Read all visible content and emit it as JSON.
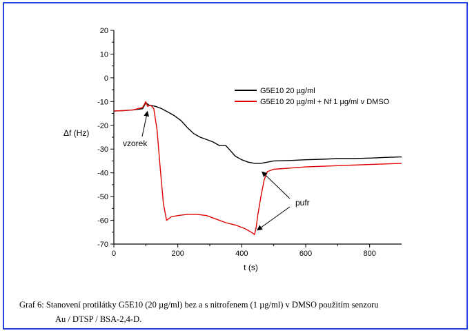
{
  "chart_data": {
    "type": "line",
    "xlabel": "t (s)",
    "ylabel": "Δf (Hz)",
    "xlim": [
      0,
      900
    ],
    "ylim": [
      -70,
      20
    ],
    "xticks": [
      0,
      200,
      400,
      600,
      800
    ],
    "yticks": [
      20,
      10,
      0,
      -10,
      -20,
      -30,
      -40,
      -50,
      -60,
      -70
    ],
    "legend_position": "right",
    "series": [
      {
        "name": "G5E10 20 µg/ml",
        "color": "#000000",
        "x": [
          0,
          30,
          60,
          90,
          100,
          110,
          130,
          150,
          170,
          190,
          210,
          230,
          250,
          270,
          290,
          310,
          330,
          350,
          360,
          380,
          400,
          420,
          440,
          460,
          480,
          500,
          550,
          600,
          650,
          700,
          750,
          800,
          850,
          900
        ],
        "y": [
          -14,
          -13.8,
          -13.5,
          -13,
          -10.5,
          -11.5,
          -12,
          -13,
          -14.5,
          -16,
          -18,
          -21,
          -23.5,
          -25,
          -26,
          -27,
          -28.5,
          -28.5,
          -30,
          -33,
          -34.5,
          -35.5,
          -36,
          -36,
          -35.5,
          -35,
          -34.8,
          -34.5,
          -34.3,
          -34,
          -34,
          -33.8,
          -33.5,
          -33.3
        ]
      },
      {
        "name": "G5E10 20 µg/ml + Nf 1 µg/ml v DMSO",
        "color": "#e00000",
        "x": [
          0,
          30,
          60,
          90,
          100,
          105,
          115,
          125,
          135,
          145,
          155,
          165,
          180,
          200,
          230,
          260,
          290,
          320,
          350,
          380,
          410,
          430,
          440,
          445,
          450,
          460,
          470,
          480,
          500,
          550,
          600,
          700,
          800,
          900
        ],
        "y": [
          -14,
          -13.8,
          -13.5,
          -12.5,
          -10,
          -12,
          -11.5,
          -13,
          -22,
          -38,
          -53,
          -60,
          -58.5,
          -58,
          -57.5,
          -57.5,
          -58,
          -59.5,
          -61,
          -62,
          -63.5,
          -65,
          -66,
          -63,
          -58,
          -50,
          -43,
          -39.5,
          -38.5,
          -38,
          -37.5,
          -37,
          -36.5,
          -36
        ]
      }
    ],
    "annotations": [
      {
        "text": "vzorek",
        "x": 100,
        "y": -28
      },
      {
        "text": "pufr",
        "x": 560,
        "y": -55
      }
    ]
  },
  "caption": {
    "line1": "Graf 6: Stanovení protilátky G5E10 (20 µg/ml) bez a s nitrofenem (1 µg/ml) v DMSO použitím senzoru",
    "line2": "Au / DTSP / BSA-2,4-D."
  }
}
